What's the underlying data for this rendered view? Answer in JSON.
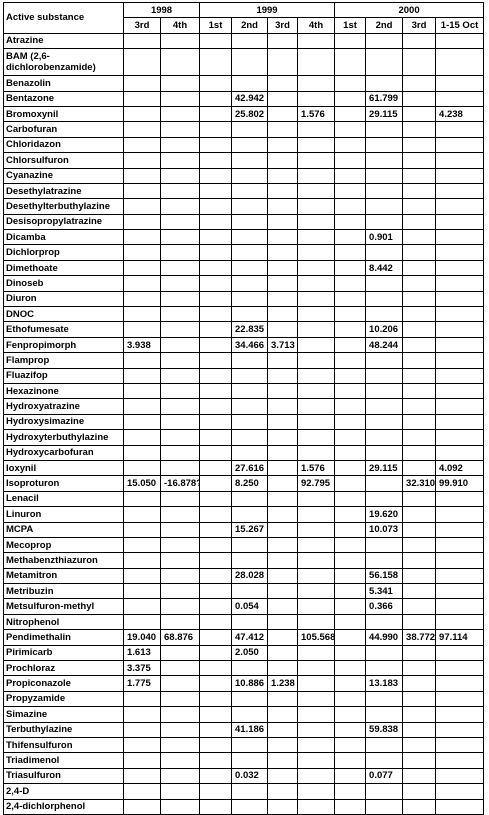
{
  "header": {
    "first_col": "Active substance",
    "years": [
      "1998",
      "1999",
      "2000"
    ],
    "quarters": [
      "3rd",
      "4th",
      "1st",
      "2nd",
      "3rd",
      "4th",
      "1st",
      "2nd",
      "3rd",
      "1-15 Oct"
    ]
  },
  "rows": [
    {
      "name": "Atrazine",
      "vals": [
        "",
        "",
        "",
        "",
        "",
        "",
        "",
        "",
        "",
        ""
      ]
    },
    {
      "name": "BAM (2,6-dichlorobenzamide)",
      "vals": [
        "",
        "",
        "",
        "",
        "",
        "",
        "",
        "",
        "",
        ""
      ]
    },
    {
      "name": "Benazolin",
      "vals": [
        "",
        "",
        "",
        "",
        "",
        "",
        "",
        "",
        "",
        ""
      ]
    },
    {
      "name": "Bentazone",
      "vals": [
        "",
        "",
        "",
        "42.942",
        "",
        "",
        "",
        "61.799",
        "",
        ""
      ]
    },
    {
      "name": "Bromoxynil",
      "vals": [
        "",
        "",
        "",
        "25.802",
        "",
        "1.576",
        "",
        "29.115",
        "",
        "4.238"
      ]
    },
    {
      "name": "Carbofuran",
      "vals": [
        "",
        "",
        "",
        "",
        "",
        "",
        "",
        "",
        "",
        ""
      ]
    },
    {
      "name": "Chloridazon",
      "vals": [
        "",
        "",
        "",
        "",
        "",
        "",
        "",
        "",
        "",
        ""
      ]
    },
    {
      "name": "Chlorsulfuron",
      "vals": [
        "",
        "",
        "",
        "",
        "",
        "",
        "",
        "",
        "",
        ""
      ]
    },
    {
      "name": "Cyanazine",
      "vals": [
        "",
        "",
        "",
        "",
        "",
        "",
        "",
        "",
        "",
        ""
      ]
    },
    {
      "name": "Desethylatrazine",
      "vals": [
        "",
        "",
        "",
        "",
        "",
        "",
        "",
        "",
        "",
        ""
      ]
    },
    {
      "name": "Desethylterbuthylazine",
      "vals": [
        "",
        "",
        "",
        "",
        "",
        "",
        "",
        "",
        "",
        ""
      ]
    },
    {
      "name": "Desisopropylatrazine",
      "vals": [
        "",
        "",
        "",
        "",
        "",
        "",
        "",
        "",
        "",
        ""
      ]
    },
    {
      "name": "Dicamba",
      "vals": [
        "",
        "",
        "",
        "",
        "",
        "",
        "",
        "0.901",
        "",
        ""
      ]
    },
    {
      "name": "Dichlorprop",
      "vals": [
        "",
        "",
        "",
        "",
        "",
        "",
        "",
        "",
        "",
        ""
      ]
    },
    {
      "name": "Dimethoate",
      "vals": [
        "",
        "",
        "",
        "",
        "",
        "",
        "",
        "8.442",
        "",
        ""
      ]
    },
    {
      "name": "Dinoseb",
      "vals": [
        "",
        "",
        "",
        "",
        "",
        "",
        "",
        "",
        "",
        ""
      ]
    },
    {
      "name": "Diuron",
      "vals": [
        "",
        "",
        "",
        "",
        "",
        "",
        "",
        "",
        "",
        ""
      ]
    },
    {
      "name": "DNOC",
      "vals": [
        "",
        "",
        "",
        "",
        "",
        "",
        "",
        "",
        "",
        ""
      ]
    },
    {
      "name": "Ethofumesate",
      "vals": [
        "",
        "",
        "",
        "22.835",
        "",
        "",
        "",
        "10.206",
        "",
        ""
      ]
    },
    {
      "name": "Fenpropimorph",
      "vals": [
        "3.938",
        "",
        "",
        "34.466",
        "3.713",
        "",
        "",
        "48.244",
        "",
        ""
      ]
    },
    {
      "name": "Flamprop",
      "vals": [
        "",
        "",
        "",
        "",
        "",
        "",
        "",
        "",
        "",
        ""
      ]
    },
    {
      "name": "Fluazifop",
      "vals": [
        "",
        "",
        "",
        "",
        "",
        "",
        "",
        "",
        "",
        ""
      ]
    },
    {
      "name": "Hexazinone",
      "vals": [
        "",
        "",
        "",
        "",
        "",
        "",
        "",
        "",
        "",
        ""
      ]
    },
    {
      "name": "Hydroxyatrazine",
      "vals": [
        "",
        "",
        "",
        "",
        "",
        "",
        "",
        "",
        "",
        ""
      ]
    },
    {
      "name": "Hydroxysimazine",
      "vals": [
        "",
        "",
        "",
        "",
        "",
        "",
        "",
        "",
        "",
        ""
      ]
    },
    {
      "name": "Hydroxyterbuthylazine",
      "vals": [
        "",
        "",
        "",
        "",
        "",
        "",
        "",
        "",
        "",
        ""
      ]
    },
    {
      "name": "Hydroxycarbofuran",
      "vals": [
        "",
        "",
        "",
        "",
        "",
        "",
        "",
        "",
        "",
        ""
      ]
    },
    {
      "name": "Ioxynil",
      "vals": [
        "",
        "",
        "",
        "27.616",
        "",
        "1.576",
        "",
        "29.115",
        "",
        "4.092"
      ]
    },
    {
      "name": "Isoproturon",
      "vals": [
        "15.050",
        "-16.878?",
        "",
        "8.250",
        "",
        "92.795",
        "",
        "",
        "32.310",
        "99.910"
      ]
    },
    {
      "name": "Lenacil",
      "vals": [
        "",
        "",
        "",
        "",
        "",
        "",
        "",
        "",
        "",
        ""
      ]
    },
    {
      "name": "Linuron",
      "vals": [
        "",
        "",
        "",
        "",
        "",
        "",
        "",
        "19.620",
        "",
        ""
      ]
    },
    {
      "name": "MCPA",
      "vals": [
        "",
        "",
        "",
        "15.267",
        "",
        "",
        "",
        "10.073",
        "",
        ""
      ]
    },
    {
      "name": "Mecoprop",
      "vals": [
        "",
        "",
        "",
        "",
        "",
        "",
        "",
        "",
        "",
        ""
      ]
    },
    {
      "name": "Methabenzthiazuron",
      "vals": [
        "",
        "",
        "",
        "",
        "",
        "",
        "",
        "",
        "",
        ""
      ]
    },
    {
      "name": "Metamitron",
      "vals": [
        "",
        "",
        "",
        "28.028",
        "",
        "",
        "",
        "56.158",
        "",
        ""
      ]
    },
    {
      "name": "Metribuzin",
      "vals": [
        "",
        "",
        "",
        "",
        "",
        "",
        "",
        "5.341",
        "",
        ""
      ]
    },
    {
      "name": "Metsulfuron-methyl",
      "vals": [
        "",
        "",
        "",
        "0.054",
        "",
        "",
        "",
        "0.366",
        "",
        ""
      ]
    },
    {
      "name": "Nitrophenol",
      "vals": [
        "",
        "",
        "",
        "",
        "",
        "",
        "",
        "",
        "",
        ""
      ]
    },
    {
      "name": "Pendimethalin",
      "vals": [
        "19.040",
        "68.876",
        "",
        "47.412",
        "",
        "105.568",
        "",
        "44.990",
        "38.772",
        "97.114"
      ]
    },
    {
      "name": "Pirimicarb",
      "vals": [
        "1.613",
        "",
        "",
        "2.050",
        "",
        "",
        "",
        "",
        "",
        ""
      ]
    },
    {
      "name": "Prochloraz",
      "vals": [
        "3.375",
        "",
        "",
        "",
        "",
        "",
        "",
        "",
        "",
        ""
      ]
    },
    {
      "name": "Propiconazole",
      "vals": [
        "1.775",
        "",
        "",
        "10.886",
        "1.238",
        "",
        "",
        "13.183",
        "",
        ""
      ]
    },
    {
      "name": "Propyzamide",
      "vals": [
        "",
        "",
        "",
        "",
        "",
        "",
        "",
        "",
        "",
        ""
      ]
    },
    {
      "name": "Simazine",
      "vals": [
        "",
        "",
        "",
        "",
        "",
        "",
        "",
        "",
        "",
        ""
      ]
    },
    {
      "name": "Terbuthylazine",
      "vals": [
        "",
        "",
        "",
        "41.186",
        "",
        "",
        "",
        "59.838",
        "",
        ""
      ]
    },
    {
      "name": "Thifensulfuron",
      "vals": [
        "",
        "",
        "",
        "",
        "",
        "",
        "",
        "",
        "",
        ""
      ]
    },
    {
      "name": "Triadimenol",
      "vals": [
        "",
        "",
        "",
        "",
        "",
        "",
        "",
        "",
        "",
        ""
      ]
    },
    {
      "name": "Triasulfuron",
      "vals": [
        "",
        "",
        "",
        "0.032",
        "",
        "",
        "",
        "0.077",
        "",
        ""
      ]
    },
    {
      "name": "2,4-D",
      "vals": [
        "",
        "",
        "",
        "",
        "",
        "",
        "",
        "",
        "",
        ""
      ]
    },
    {
      "name": "2,4-dichlorphenol",
      "vals": [
        "",
        "",
        "",
        "",
        "",
        "",
        "",
        "",
        "",
        ""
      ]
    }
  ]
}
